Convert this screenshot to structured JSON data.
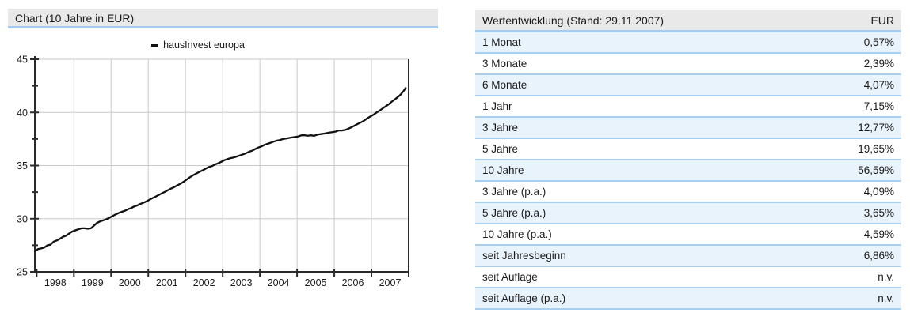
{
  "chart_panel": {
    "header": "Chart (10 Jahre in EUR)"
  },
  "table_panel": {
    "header": "Wertentwicklung (Stand: 29.11.2007)",
    "column_header": "EUR",
    "rows": [
      {
        "label": "1 Monat",
        "value": "0,57%"
      },
      {
        "label": "3 Monate",
        "value": "2,39%"
      },
      {
        "label": "6 Monate",
        "value": "4,07%"
      },
      {
        "label": "1 Jahr",
        "value": "7,15%"
      },
      {
        "label": "3 Jahre",
        "value": "12,77%"
      },
      {
        "label": "5 Jahre",
        "value": "19,65%"
      },
      {
        "label": "10 Jahre",
        "value": "56,59%"
      },
      {
        "label": "3 Jahre (p.a.)",
        "value": "4,09%"
      },
      {
        "label": "5 Jahre (p.a.)",
        "value": "3,65%"
      },
      {
        "label": "10 Jahre (p.a.)",
        "value": "4,59%"
      },
      {
        "label": "seit Jahresbeginn",
        "value": "6,86%"
      },
      {
        "label": "seit Auflage",
        "value": "n.v."
      },
      {
        "label": "seit Auflage (p.a.)",
        "value": "n.v."
      }
    ]
  },
  "chart_data": {
    "type": "line",
    "title": "Chart (10 Jahre in EUR)",
    "xlim": [
      1997.95,
      2008
    ],
    "ylim": [
      25,
      45
    ],
    "y_major_ticks": [
      25,
      30,
      35,
      40,
      45
    ],
    "y_minor_ticks": [
      27.5,
      32.5,
      37.5,
      42.5
    ],
    "x_ticks": [
      1998,
      1999,
      2000,
      2001,
      2002,
      2003,
      2004,
      2005,
      2006,
      2007,
      2008
    ],
    "x_tick_labels": [
      "1998",
      "1999",
      "2000",
      "2001",
      "2002",
      "2003",
      "2004",
      "2005",
      "2006",
      "2007"
    ],
    "grid": true,
    "legend_position": "top-center",
    "series": [
      {
        "name": "hausInvest europa",
        "points": [
          [
            1997.95,
            26.95
          ],
          [
            1998.04,
            27.15
          ],
          [
            1998.12,
            27.2
          ],
          [
            1998.21,
            27.3
          ],
          [
            1998.29,
            27.5
          ],
          [
            1998.37,
            27.55
          ],
          [
            1998.46,
            27.85
          ],
          [
            1998.54,
            27.95
          ],
          [
            1998.62,
            28.1
          ],
          [
            1998.71,
            28.3
          ],
          [
            1998.79,
            28.4
          ],
          [
            1998.87,
            28.6
          ],
          [
            1998.96,
            28.8
          ],
          [
            1999.04,
            28.9
          ],
          [
            1999.12,
            29.0
          ],
          [
            1999.21,
            29.1
          ],
          [
            1999.29,
            29.1
          ],
          [
            1999.37,
            29.05
          ],
          [
            1999.46,
            29.1
          ],
          [
            1999.54,
            29.35
          ],
          [
            1999.62,
            29.6
          ],
          [
            1999.71,
            29.75
          ],
          [
            1999.79,
            29.85
          ],
          [
            1999.87,
            29.95
          ],
          [
            1999.96,
            30.1
          ],
          [
            2000.04,
            30.25
          ],
          [
            2000.12,
            30.4
          ],
          [
            2000.21,
            30.55
          ],
          [
            2000.29,
            30.65
          ],
          [
            2000.37,
            30.75
          ],
          [
            2000.46,
            30.9
          ],
          [
            2000.54,
            31.0
          ],
          [
            2000.62,
            31.15
          ],
          [
            2000.71,
            31.25
          ],
          [
            2000.79,
            31.4
          ],
          [
            2000.87,
            31.5
          ],
          [
            2000.96,
            31.65
          ],
          [
            2001.04,
            31.8
          ],
          [
            2001.12,
            31.95
          ],
          [
            2001.21,
            32.1
          ],
          [
            2001.29,
            32.25
          ],
          [
            2001.37,
            32.4
          ],
          [
            2001.46,
            32.55
          ],
          [
            2001.54,
            32.7
          ],
          [
            2001.62,
            32.85
          ],
          [
            2001.71,
            33.0
          ],
          [
            2001.79,
            33.15
          ],
          [
            2001.87,
            33.3
          ],
          [
            2001.96,
            33.5
          ],
          [
            2002.04,
            33.7
          ],
          [
            2002.12,
            33.9
          ],
          [
            2002.21,
            34.1
          ],
          [
            2002.29,
            34.25
          ],
          [
            2002.37,
            34.4
          ],
          [
            2002.46,
            34.55
          ],
          [
            2002.54,
            34.7
          ],
          [
            2002.62,
            34.85
          ],
          [
            2002.71,
            34.95
          ],
          [
            2002.79,
            35.1
          ],
          [
            2002.87,
            35.2
          ],
          [
            2002.96,
            35.35
          ],
          [
            2003.04,
            35.5
          ],
          [
            2003.12,
            35.6
          ],
          [
            2003.21,
            35.7
          ],
          [
            2003.29,
            35.75
          ],
          [
            2003.37,
            35.85
          ],
          [
            2003.46,
            35.95
          ],
          [
            2003.54,
            36.05
          ],
          [
            2003.62,
            36.15
          ],
          [
            2003.71,
            36.3
          ],
          [
            2003.79,
            36.4
          ],
          [
            2003.87,
            36.55
          ],
          [
            2003.96,
            36.7
          ],
          [
            2004.04,
            36.8
          ],
          [
            2004.12,
            36.95
          ],
          [
            2004.21,
            37.05
          ],
          [
            2004.29,
            37.15
          ],
          [
            2004.37,
            37.25
          ],
          [
            2004.46,
            37.35
          ],
          [
            2004.54,
            37.4
          ],
          [
            2004.62,
            37.5
          ],
          [
            2004.71,
            37.55
          ],
          [
            2004.79,
            37.6
          ],
          [
            2004.87,
            37.65
          ],
          [
            2004.96,
            37.7
          ],
          [
            2005.04,
            37.75
          ],
          [
            2005.12,
            37.85
          ],
          [
            2005.21,
            37.85
          ],
          [
            2005.29,
            37.8
          ],
          [
            2005.37,
            37.85
          ],
          [
            2005.46,
            37.8
          ],
          [
            2005.54,
            37.9
          ],
          [
            2005.62,
            37.95
          ],
          [
            2005.71,
            38.0
          ],
          [
            2005.79,
            38.05
          ],
          [
            2005.87,
            38.1
          ],
          [
            2005.96,
            38.15
          ],
          [
            2006.04,
            38.2
          ],
          [
            2006.12,
            38.3
          ],
          [
            2006.21,
            38.3
          ],
          [
            2006.29,
            38.35
          ],
          [
            2006.37,
            38.45
          ],
          [
            2006.46,
            38.6
          ],
          [
            2006.54,
            38.75
          ],
          [
            2006.62,
            38.9
          ],
          [
            2006.71,
            39.05
          ],
          [
            2006.79,
            39.2
          ],
          [
            2006.87,
            39.4
          ],
          [
            2006.96,
            39.6
          ],
          [
            2007.04,
            39.75
          ],
          [
            2007.12,
            39.95
          ],
          [
            2007.21,
            40.15
          ],
          [
            2007.29,
            40.35
          ],
          [
            2007.37,
            40.55
          ],
          [
            2007.46,
            40.75
          ],
          [
            2007.54,
            41.0
          ],
          [
            2007.62,
            41.2
          ],
          [
            2007.71,
            41.45
          ],
          [
            2007.79,
            41.7
          ],
          [
            2007.87,
            42.05
          ],
          [
            2007.92,
            42.3
          ]
        ]
      }
    ],
    "colors": {
      "line": "#111111",
      "grid": "#c9c9c9",
      "axis": "#2b2b2b",
      "header_bg": "#e9e9e9",
      "separator_blue": "#a5cbee",
      "row_alt_bg": "#e9f3fc"
    }
  }
}
